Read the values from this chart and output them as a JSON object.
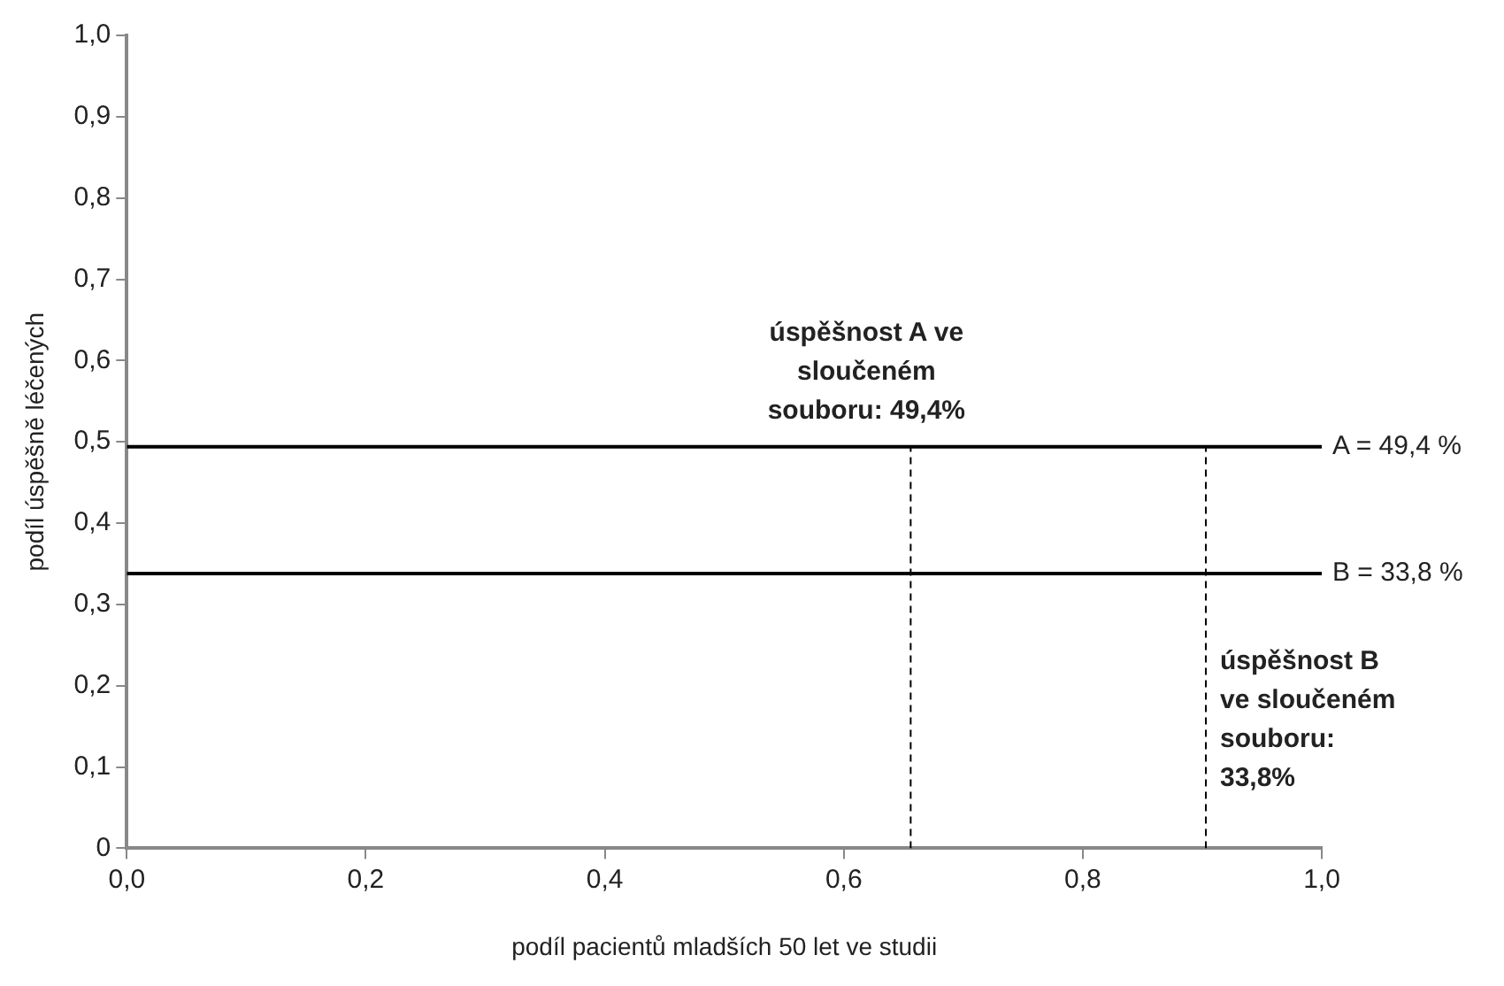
{
  "chart_data": {
    "type": "line",
    "xlabel": "podíl pacientů mladších 50 let ve studii",
    "ylabel": "podíl úspěšně léčených",
    "xlim": [
      0,
      1
    ],
    "xticks": [
      {
        "value": 0,
        "label": "0,0"
      },
      {
        "value": 0.2,
        "label": "0,2"
      },
      {
        "value": 0.4,
        "label": "0,4"
      },
      {
        "value": 0.6,
        "label": "0,6"
      },
      {
        "value": 0.8,
        "label": "0,8"
      },
      {
        "value": 1,
        "label": "1,0"
      }
    ],
    "ylim": [
      0,
      1
    ],
    "yticks": [
      0,
      {
        "value": 0.1,
        "label": "0,1"
      },
      {
        "value": 0.2,
        "label": "0,2"
      },
      {
        "value": 0.3,
        "label": "0,3"
      },
      {
        "value": 0.4,
        "label": "0,4"
      },
      {
        "value": 0.5,
        "label": "0,5"
      },
      {
        "value": 0.6,
        "label": "0,6"
      },
      {
        "value": 0.7,
        "label": "0,7"
      },
      {
        "value": 0.8,
        "label": "0,8"
      },
      {
        "value": 0.9,
        "label": "0,9"
      },
      {
        "value": 1,
        "label": "1,0"
      }
    ],
    "grid": false,
    "legend": false,
    "marker": "none",
    "series": [
      {
        "name": "A = 49,4 %",
        "color": "#000000",
        "x": [
          0,
          1
        ],
        "values": [
          0.494,
          0.494
        ],
        "line_style": "solid"
      },
      {
        "name": "B = 33,8 %",
        "color": "#000000",
        "x": [
          0,
          1
        ],
        "values": [
          0.338,
          0.338
        ],
        "line_style": "solid"
      },
      {
        "color": "#000000",
        "x": [
          0.656,
          0.656
        ],
        "values": [
          0,
          0.494
        ],
        "line_style": "dashed"
      },
      {
        "color": "#000000",
        "x": [
          0.903,
          0.903
        ],
        "values": [
          0,
          0.494
        ],
        "line_style": "dashed"
      }
    ],
    "annotations": [
      "úspěšnost A ve sloučeném souboru: 49,4%",
      "úspěšnost B ve sloučeném souboru: 33,8%"
    ]
  }
}
